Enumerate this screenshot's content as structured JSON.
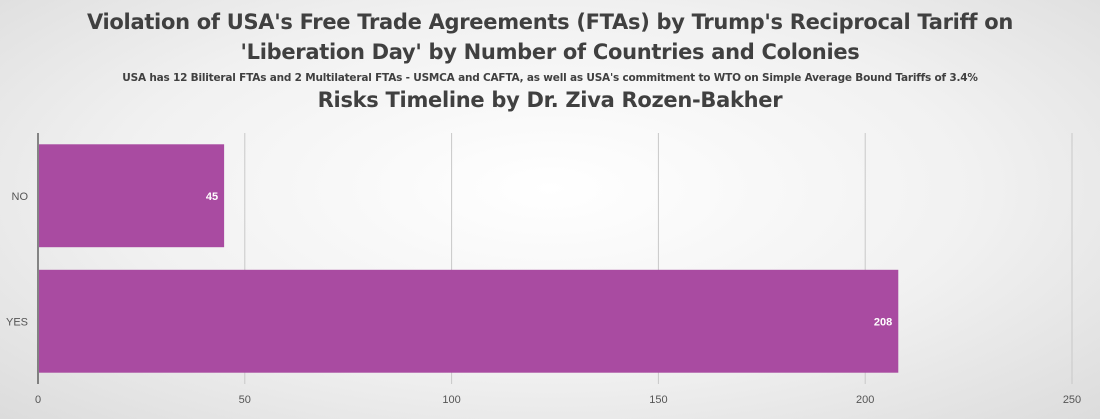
{
  "chart_data": {
    "type": "bar",
    "orientation": "horizontal",
    "title_line1": "Violation of USA's Free Trade Agreements (FTAs) by Trump's Reciprocal Tariff on",
    "title_line2": "'Liberation Day' by Number of Countries and Colonies",
    "subtitle": "USA has 12 Biliteral FTAs and 2 Multilateral FTAs - USMCA and CAFTA, as well as USA's commitment to WTO on Simple Average Bound Tariffs of 3.4%",
    "title_line3": "Risks Timeline by Dr. Ziva Rozen-Bakher",
    "categories": [
      "NO",
      "YES"
    ],
    "values": [
      45,
      208
    ],
    "xlim": [
      0,
      250
    ],
    "xticks": [
      0,
      50,
      100,
      150,
      200,
      250
    ],
    "grid": true,
    "bar_color": "#a94ba1"
  }
}
